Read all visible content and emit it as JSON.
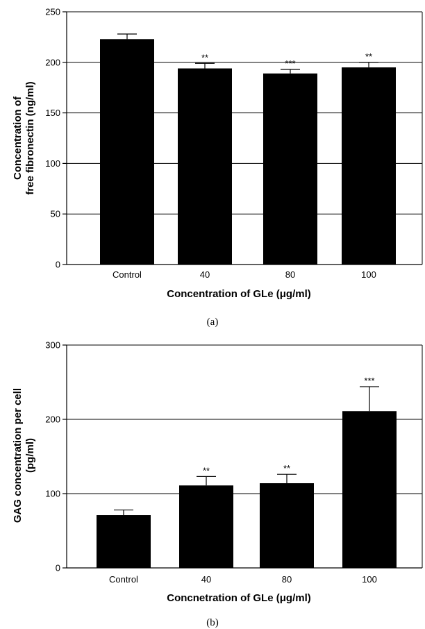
{
  "chart_data": [
    {
      "type": "bar",
      "panel_label": "(a)",
      "categories": [
        "Control",
        "40",
        "80",
        "100"
      ],
      "values": [
        223,
        194,
        189,
        195
      ],
      "errors": [
        5,
        5,
        4,
        5
      ],
      "significance": [
        "",
        "**",
        "***",
        "**"
      ],
      "xlabel": "Concentration of GLe (μg/ml)",
      "ylabel_lines": [
        "Concentration of",
        "free fibronectin (ng/ml)"
      ],
      "ylim": [
        0,
        250
      ],
      "yticks": [
        0,
        50,
        100,
        150,
        200,
        250
      ],
      "grid": "horizontal"
    },
    {
      "type": "bar",
      "panel_label": "(b)",
      "categories": [
        "Control",
        "40",
        "80",
        "100"
      ],
      "values": [
        71,
        111,
        114,
        211
      ],
      "errors": [
        7,
        12,
        12,
        33
      ],
      "significance": [
        "",
        "**",
        "**",
        "***"
      ],
      "xlabel": "Concnetration of GLe (μg/ml)",
      "ylabel_lines": [
        "GAG concentration per cell",
        "(pg/ml)"
      ],
      "ylim": [
        0,
        300
      ],
      "yticks": [
        0,
        100,
        200,
        300
      ],
      "grid": "horizontal"
    }
  ]
}
